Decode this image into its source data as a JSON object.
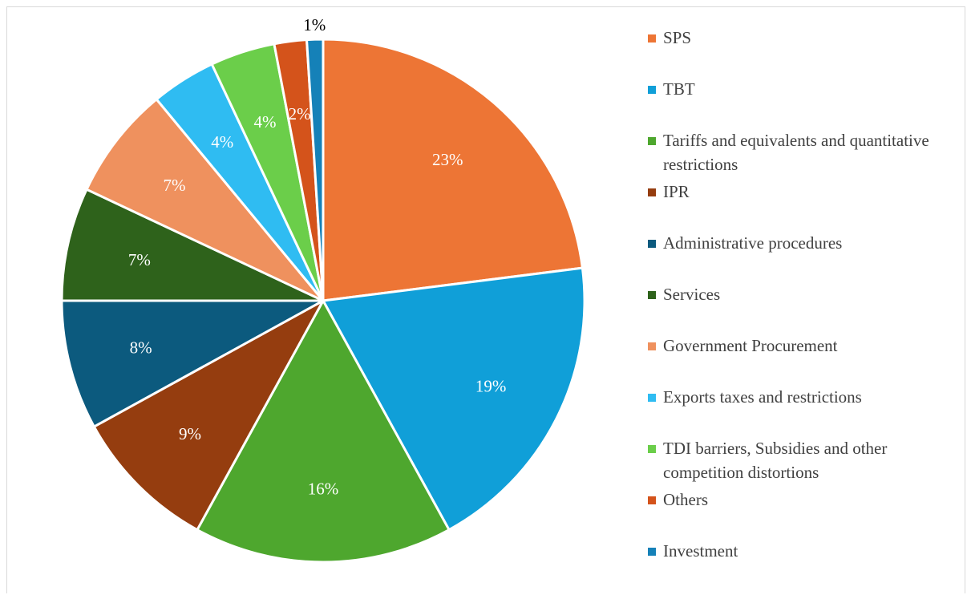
{
  "chart_data": {
    "type": "pie",
    "title": "",
    "legend_placement": "right",
    "slices": [
      {
        "label": "SPS",
        "value": 23,
        "display": "23%",
        "color": "#ED7535"
      },
      {
        "label": "TBT",
        "value": 19,
        "display": "19%",
        "color": "#109FD8"
      },
      {
        "label": "Tariffs and equivalents and quantitative restrictions",
        "value": 16,
        "display": "16%",
        "color": "#4EA72E"
      },
      {
        "label": "IPR",
        "value": 9,
        "display": "9%",
        "color": "#953D0F"
      },
      {
        "label": "Administrative procedures",
        "value": 8,
        "display": "8%",
        "color": "#0C5A7E"
      },
      {
        "label": "Services",
        "value": 7,
        "display": "7%",
        "color": "#2E621B"
      },
      {
        "label": "Government Procurement",
        "value": 7,
        "display": "7%",
        "color": "#EF915E"
      },
      {
        "label": "Exports taxes and restrictions",
        "value": 4,
        "display": "4%",
        "color": "#2FBCF2"
      },
      {
        "label": "TDI barriers, Subsidies and other competition distortions",
        "value": 4,
        "display": "4%",
        "color": "#6BCE4A"
      },
      {
        "label": "Others",
        "value": 2,
        "display": "2%",
        "color": "#D4531B"
      },
      {
        "label": "Investment",
        "value": 1,
        "display": "1%",
        "color": "#1581B8"
      }
    ]
  }
}
